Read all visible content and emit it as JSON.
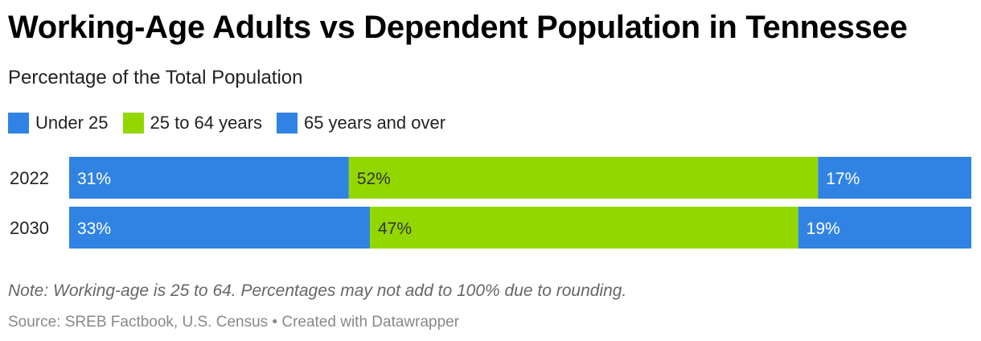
{
  "title": "Working-Age Adults vs Dependent Population in Tennessee",
  "subtitle": "Percentage of the Total Population",
  "legend": [
    {
      "label": "Under 25",
      "color": "#3083e3"
    },
    {
      "label": "25 to 64 years",
      "color": "#93d700"
    },
    {
      "label": "65 years and over",
      "color": "#3083e3"
    }
  ],
  "note": "Note: Working-age is 25 to 64. Percentages may not add to 100% due to rounding.",
  "source": "Source: SREB Factbook, U.S. Census • Created with Datawrapper",
  "chart_data": {
    "type": "bar",
    "orientation": "horizontal",
    "stacked": true,
    "normalized": true,
    "categories": [
      "2022",
      "2030"
    ],
    "series": [
      {
        "name": "Under 25",
        "values": [
          31,
          33
        ],
        "labels": [
          "31%",
          "33%"
        ],
        "color": "#3083e3"
      },
      {
        "name": "25 to 64 years",
        "values": [
          52,
          47
        ],
        "labels": [
          "52%",
          "47%"
        ],
        "color": "#93d700"
      },
      {
        "name": "65 years and over",
        "values": [
          17,
          19
        ],
        "labels": [
          "17%",
          "19%"
        ],
        "color": "#3083e3"
      }
    ],
    "legend_position": "top-left",
    "grid": false,
    "xlabel": "",
    "ylabel": ""
  }
}
